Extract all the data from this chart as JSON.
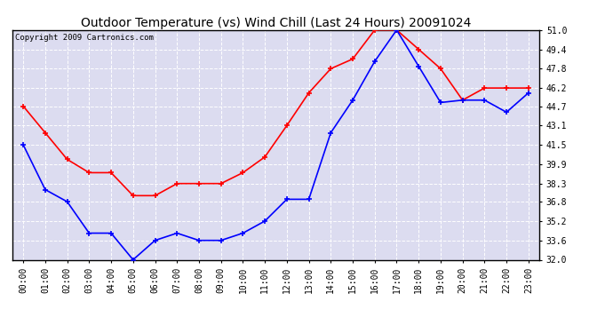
{
  "title": "Outdoor Temperature (vs) Wind Chill (Last 24 Hours) 20091024",
  "copyright": "Copyright 2009 Cartronics.com",
  "x_labels": [
    "00:00",
    "01:00",
    "02:00",
    "03:00",
    "04:00",
    "05:00",
    "06:00",
    "07:00",
    "08:00",
    "09:00",
    "10:00",
    "11:00",
    "12:00",
    "13:00",
    "14:00",
    "15:00",
    "16:00",
    "17:00",
    "18:00",
    "19:00",
    "20:00",
    "21:00",
    "22:00",
    "23:00"
  ],
  "temp_red": [
    44.7,
    42.5,
    40.3,
    39.2,
    39.2,
    37.3,
    37.3,
    38.3,
    38.3,
    38.3,
    39.2,
    40.5,
    43.1,
    45.8,
    47.8,
    48.6,
    51.0,
    51.0,
    49.4,
    47.8,
    45.2,
    46.2,
    46.2,
    46.2
  ],
  "wind_blue": [
    41.5,
    37.8,
    36.8,
    34.2,
    34.2,
    32.0,
    33.6,
    34.2,
    33.6,
    33.6,
    34.2,
    35.2,
    37.0,
    37.0,
    42.5,
    45.2,
    48.4,
    51.0,
    48.0,
    45.0,
    45.2,
    45.2,
    44.2,
    45.8
  ],
  "ylim_min": 32.0,
  "ylim_max": 51.0,
  "yticks": [
    32.0,
    33.6,
    35.2,
    36.8,
    38.3,
    39.9,
    41.5,
    43.1,
    44.7,
    46.2,
    47.8,
    49.4,
    51.0
  ],
  "red_color": "#ff0000",
  "blue_color": "#0000ff",
  "fig_bg_color": "#ffffff",
  "plot_bg_color": "#dcdcf0",
  "grid_color": "#ffffff",
  "title_fontsize": 10,
  "copyright_fontsize": 6.5,
  "tick_fontsize": 7,
  "line_width": 1.2,
  "marker_size": 4
}
